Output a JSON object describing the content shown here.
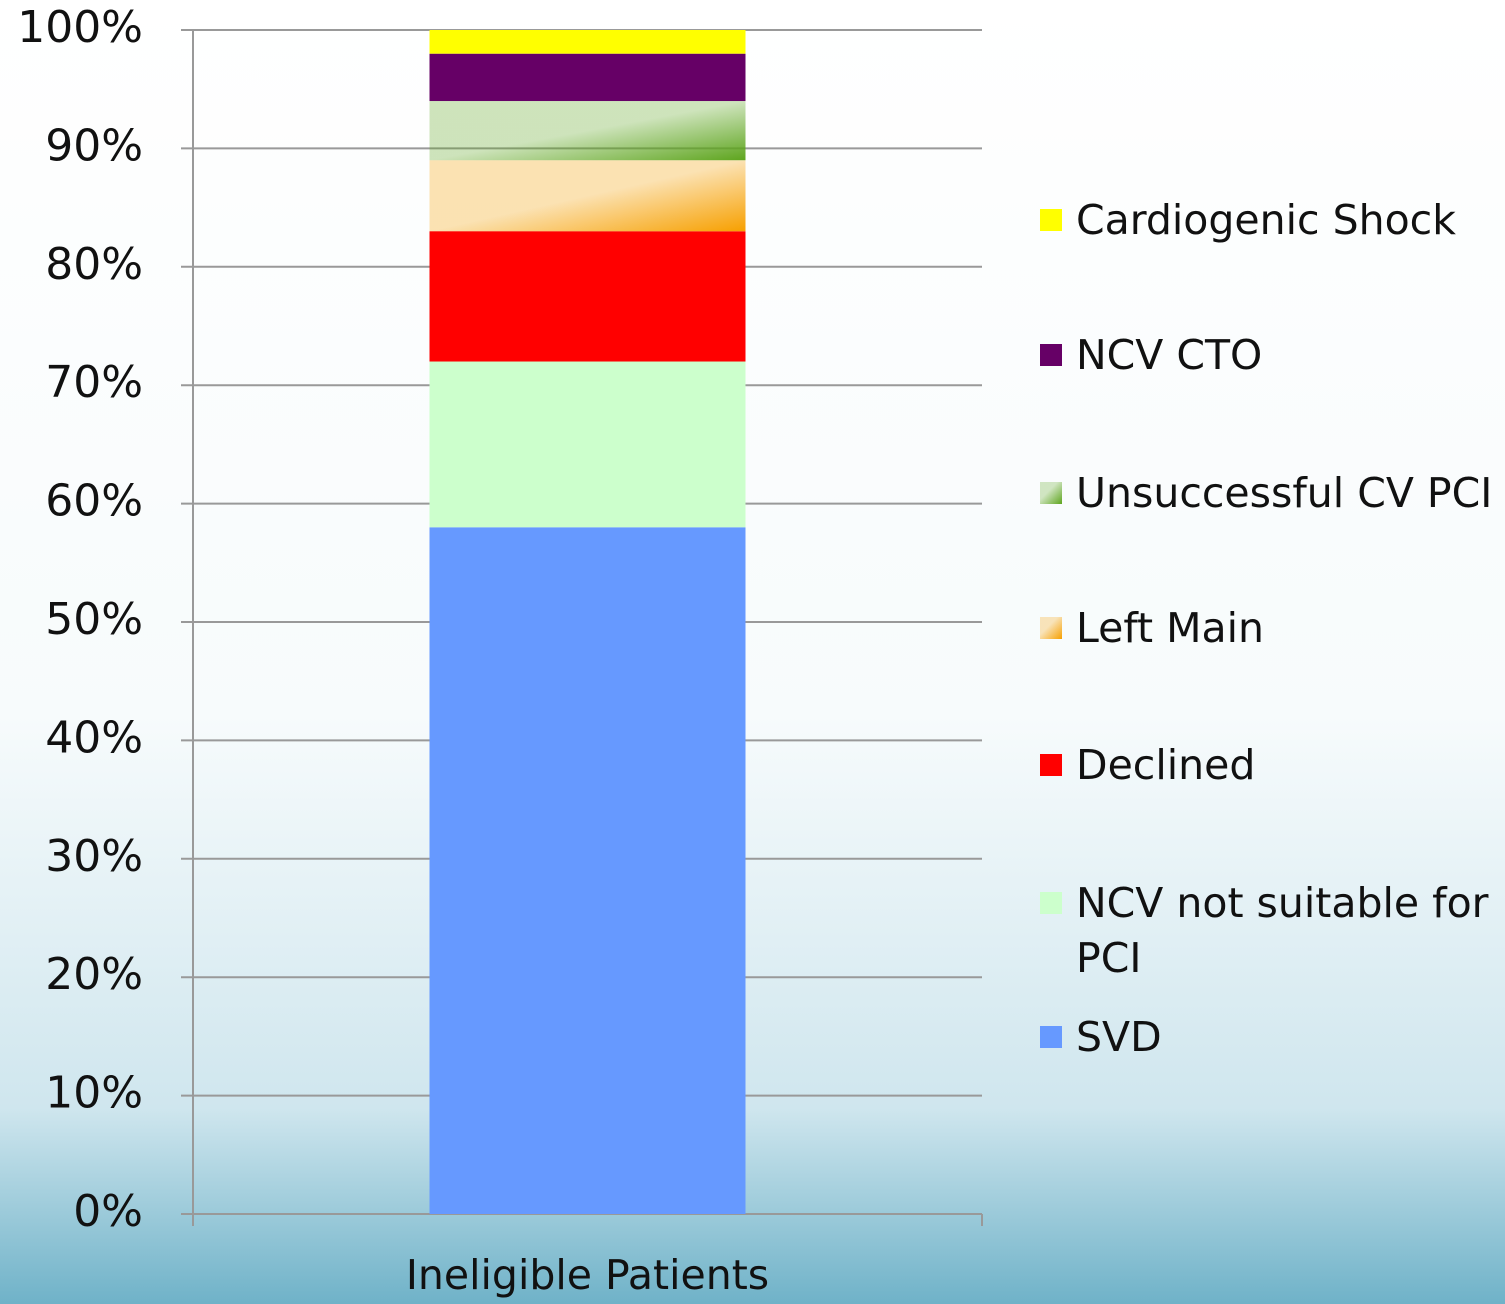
{
  "chart_data": {
    "type": "stacked_bar",
    "categories": [
      "Ineligible Patients"
    ],
    "series": [
      {
        "name": "SVD",
        "color": "#6699ff",
        "values": [
          58
        ]
      },
      {
        "name": "NCV not suitable for PCI",
        "color": "#ccffcc",
        "values": [
          14
        ]
      },
      {
        "name": "Declined",
        "color": "#ff0000",
        "values": [
          11
        ]
      },
      {
        "name": "Left Main",
        "color": "#f7a000",
        "style": "gradient",
        "values": [
          6
        ]
      },
      {
        "name": "Unsuccessful CV PCI",
        "color": "#5ea51e",
        "style": "gradient",
        "values": [
          5
        ]
      },
      {
        "name": "NCV CTO",
        "color": "#660066",
        "values": [
          4
        ]
      },
      {
        "name": "Cardiogenic Shock",
        "color": "#ffff00",
        "values": [
          2
        ]
      }
    ],
    "ylim": [
      0,
      100
    ],
    "yticks": [
      {
        "value": 0,
        "label": "0%"
      },
      {
        "value": 10,
        "label": "10%"
      },
      {
        "value": 20,
        "label": "20%"
      },
      {
        "value": 30,
        "label": "30%"
      },
      {
        "value": 40,
        "label": "40%"
      },
      {
        "value": 50,
        "label": "50%"
      },
      {
        "value": 60,
        "label": "60%"
      },
      {
        "value": 70,
        "label": "70%"
      },
      {
        "value": 80,
        "label": "80%"
      },
      {
        "value": 90,
        "label": "90%"
      },
      {
        "value": 100,
        "label": "100%"
      }
    ],
    "grid": true,
    "legend": "right"
  }
}
